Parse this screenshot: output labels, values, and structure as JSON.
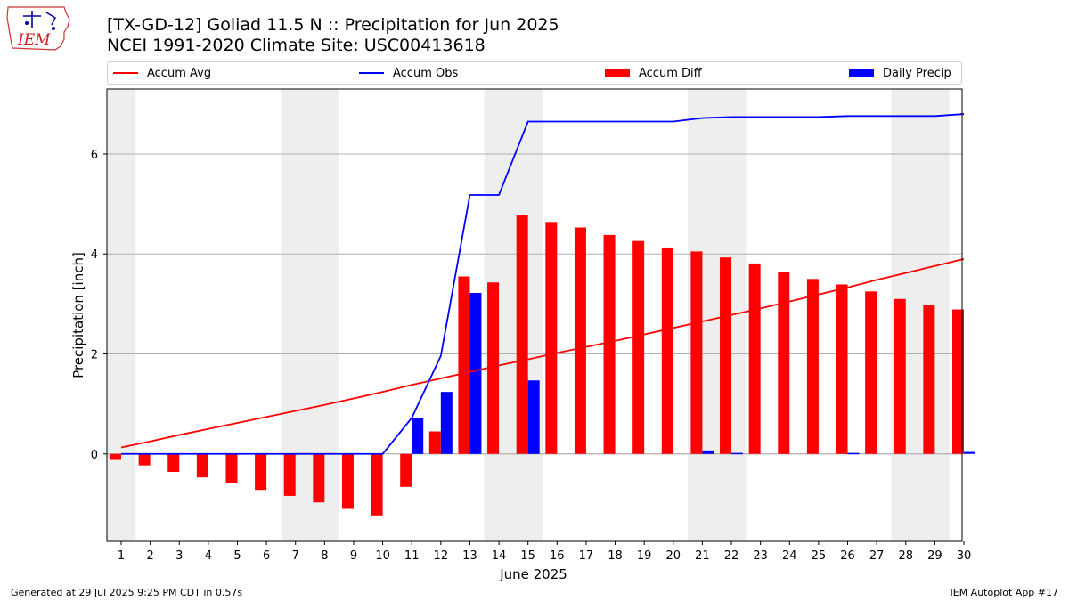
{
  "logo": {
    "text": "IEM"
  },
  "title_line1": "[TX-GD-12] Goliad 11.5 N :: Precipitation for Jun 2025",
  "title_line2": "NCEI 1991-2020 Climate Site: USC00413618",
  "legend": [
    {
      "label": "Accum Avg",
      "kind": "line",
      "color": "#ff0000"
    },
    {
      "label": "Accum Obs",
      "kind": "line",
      "color": "#0000ff"
    },
    {
      "label": "Accum Diff",
      "kind": "bar",
      "color": "#ff0000"
    },
    {
      "label": "Daily Precip",
      "kind": "bar",
      "color": "#0000ff"
    }
  ],
  "footer_left": "Generated at 29 Jul 2025 9:25 PM CDT in 0.57s",
  "footer_right": "IEM Autoplot App #17",
  "chart_data": {
    "type": "bar",
    "xlabel": "June 2025",
    "ylabel": "Precipitation [inch]",
    "ylim": [
      -1.75,
      7.3
    ],
    "yticks": [
      0,
      2,
      4,
      6
    ],
    "grid": "horizontal",
    "legend_position": "top",
    "weekend_shading_color": "#eeeeee",
    "weekend_days": [
      1,
      7,
      8,
      14,
      15,
      21,
      22,
      28,
      29
    ],
    "categories": [
      "1",
      "2",
      "3",
      "4",
      "5",
      "6",
      "7",
      "8",
      "9",
      "10",
      "11",
      "12",
      "13",
      "14",
      "15",
      "16",
      "17",
      "18",
      "19",
      "20",
      "21",
      "22",
      "23",
      "24",
      "25",
      "26",
      "27",
      "28",
      "29",
      "30"
    ],
    "series": [
      {
        "name": "Accum Avg",
        "type": "line",
        "color": "#ff0000",
        "values": [
          0.13,
          0.25,
          0.38,
          0.5,
          0.62,
          0.74,
          0.86,
          0.98,
          1.11,
          1.24,
          1.38,
          1.51,
          1.64,
          1.77,
          1.89,
          2.02,
          2.14,
          2.26,
          2.39,
          2.52,
          2.65,
          2.78,
          2.91,
          3.05,
          3.19,
          3.33,
          3.48,
          3.62,
          3.76,
          3.9
        ]
      },
      {
        "name": "Accum Obs",
        "type": "line",
        "color": "#0000ff",
        "values": [
          0,
          0,
          0,
          0,
          0,
          0,
          0,
          0,
          0,
          0,
          0.72,
          1.96,
          5.18,
          5.18,
          6.65,
          6.65,
          6.65,
          6.65,
          6.65,
          6.65,
          6.72,
          6.74,
          6.74,
          6.74,
          6.74,
          6.76,
          6.76,
          6.76,
          6.76,
          6.8
        ]
      },
      {
        "name": "Accum Diff",
        "type": "bar",
        "color": "#ff0000",
        "values": [
          -0.12,
          -0.23,
          -0.36,
          -0.47,
          -0.59,
          -0.72,
          -0.84,
          -0.97,
          -1.1,
          -1.23,
          -0.66,
          0.45,
          3.55,
          3.43,
          4.77,
          4.64,
          4.53,
          4.38,
          4.26,
          4.13,
          4.05,
          3.93,
          3.81,
          3.64,
          3.5,
          3.39,
          3.25,
          3.1,
          2.98,
          2.89
        ]
      },
      {
        "name": "Daily Precip",
        "type": "bar",
        "color": "#0000ff",
        "values": [
          0,
          0,
          0,
          0,
          0,
          0,
          0,
          0,
          0,
          0,
          0.72,
          1.24,
          3.22,
          0,
          1.47,
          0,
          0,
          0,
          0,
          0,
          0.07,
          0.02,
          0,
          0,
          0,
          0.02,
          0,
          0,
          0,
          0.04
        ]
      }
    ]
  }
}
